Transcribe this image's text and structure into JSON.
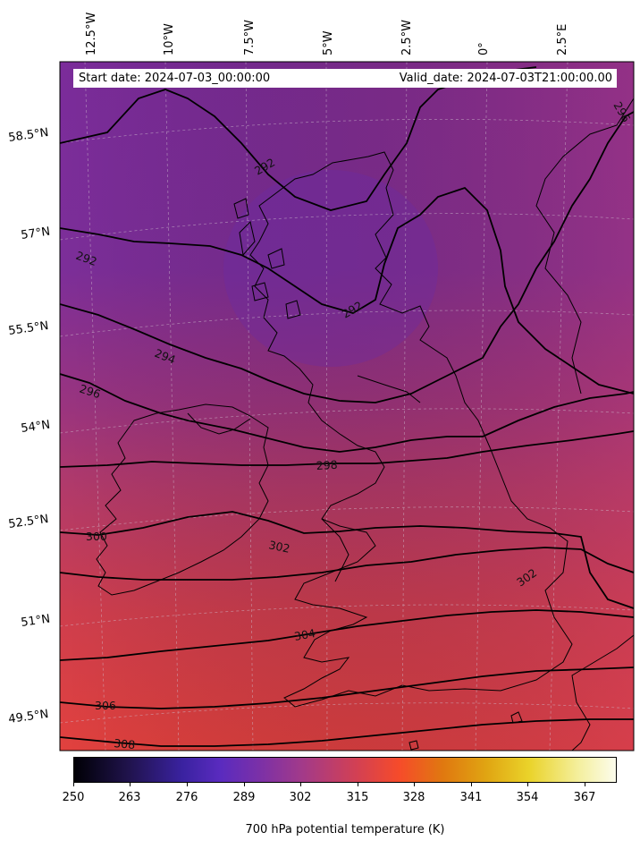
{
  "header": {
    "start_label": "Start date: 2024-07-03_00:00:00",
    "valid_label": "Valid_date: 2024-07-03T21:00:00.00"
  },
  "map": {
    "field": "700 hPa potential temperature",
    "units": "K",
    "longitude_labels": [
      "12.5°W",
      "10°W",
      "7.5°W",
      "5°W",
      "2.5°W",
      "0°",
      "2.5°E"
    ],
    "latitude_labels": [
      "58.5°N",
      "57°N",
      "55.5°N",
      "54°N",
      "52.5°N",
      "51°N",
      "49.5°N"
    ],
    "contour_labels": [
      "296",
      "292",
      "292",
      "292",
      "294",
      "296",
      "298",
      "300",
      "302",
      "302",
      "304",
      "306",
      "308"
    ],
    "colors": {
      "field_north": "#7a2c99",
      "field_mid": "#a1357f",
      "field_south": "#dd3f3f",
      "contour": "#000000",
      "coastline": "#000000",
      "gridline": "#c8c8c8"
    }
  },
  "colorbar": {
    "label": "700 hPa potential temperature (K)",
    "ticks": [
      "250",
      "263",
      "276",
      "289",
      "302",
      "315",
      "328",
      "341",
      "354",
      "367"
    ],
    "range": [
      250,
      380
    ],
    "colormap_stops": [
      "#000005",
      "#3a22a0",
      "#7a30a8",
      "#d24054",
      "#f64b2a",
      "#e0a412",
      "#ead32a",
      "#fcfcec"
    ]
  }
}
